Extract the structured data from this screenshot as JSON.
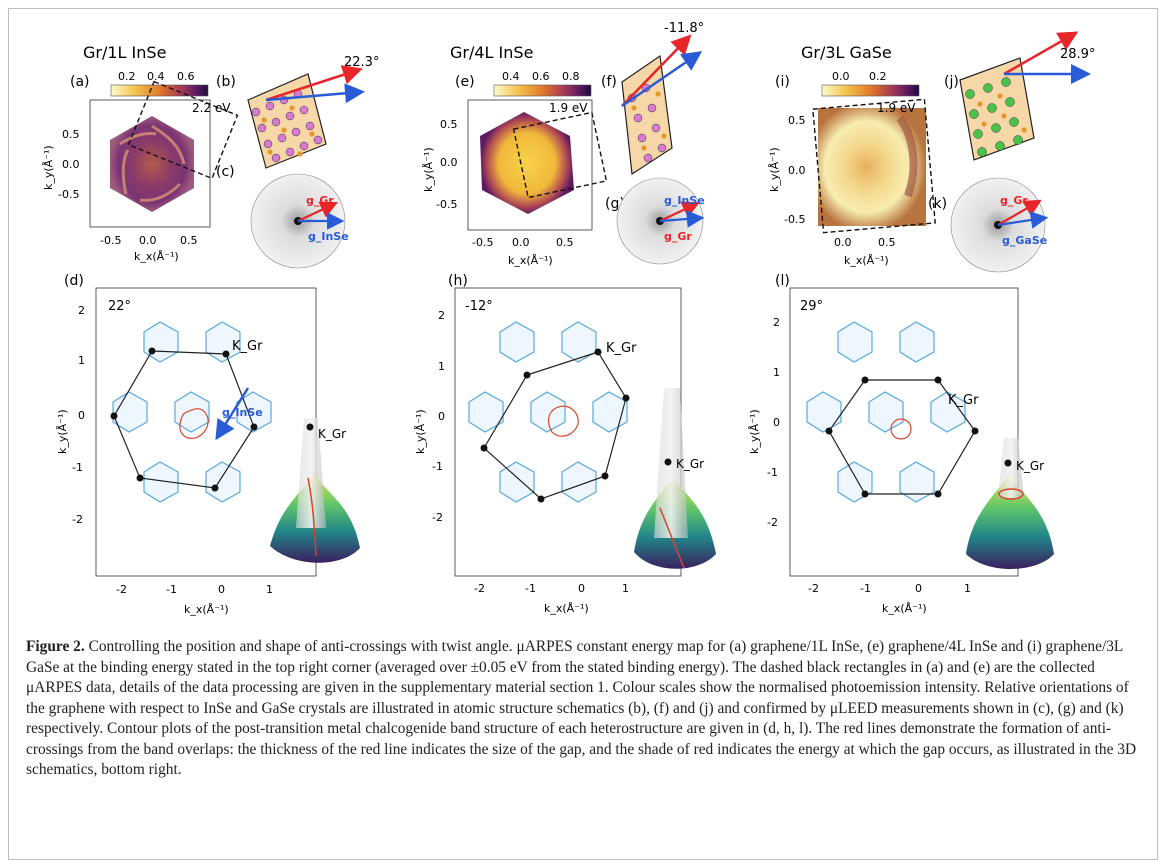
{
  "figure": {
    "columns": [
      {
        "title": "Gr/1L InSe",
        "map_label": "(a)",
        "schematic_label": "(b)",
        "leed_label": "(c)",
        "contour_label": "(d)",
        "angle_text": "22.3°",
        "energy_text": "2.2 eV",
        "colorbar_ticks": [
          "0.2",
          "0.4",
          "0.6"
        ],
        "map_ylabel": "k_y(Å⁻¹)",
        "map_xlabel": "k_x(Å⁻¹)",
        "map_yticks": [
          "0.5",
          "0.0",
          "-0.5"
        ],
        "map_xticks": [
          "-0.5",
          "0.0",
          "0.5"
        ],
        "leed_g1": "g_Gr",
        "leed_g2": "g_InSe",
        "contour_angle": "22°",
        "kgr_label": "K_Gr",
        "kgr3d_label": "K_Gr",
        "gvec_label": "g_InSe",
        "contour_yticks": [
          "2",
          "1",
          "0",
          "-1",
          "-2"
        ],
        "contour_xticks": [
          "-2",
          "-1",
          "0",
          "1"
        ],
        "contour_ylabel": "k_y(Å⁻¹)",
        "contour_xlabel": "k_x(Å⁻¹)"
      },
      {
        "title": "Gr/4L InSe",
        "map_label": "(e)",
        "schematic_label": "(f)",
        "leed_label": "(g)",
        "contour_label": "(h)",
        "angle_text": "-11.8°",
        "energy_text": "1.9 eV",
        "colorbar_ticks": [
          "0.4",
          "0.6",
          "0.8"
        ],
        "map_ylabel": "k_y(Å⁻¹)",
        "map_xlabel": "k_x(Å⁻¹)",
        "map_yticks": [
          "0.5",
          "0.0",
          "-0.5"
        ],
        "map_xticks": [
          "-0.5",
          "0.0",
          "0.5"
        ],
        "leed_g1": "g_InSe",
        "leed_g2": "g_Gr",
        "contour_angle": "-12°",
        "kgr_label": "K_Gr",
        "kgr3d_label": "K_Gr",
        "contour_yticks": [
          "2",
          "1",
          "0",
          "-1",
          "-2"
        ],
        "contour_xticks": [
          "-2",
          "-1",
          "0",
          "1"
        ],
        "contour_ylabel": "k_y(Å⁻¹)",
        "contour_xlabel": "k_x(Å⁻¹)"
      },
      {
        "title": "Gr/3L GaSe",
        "map_label": "(i)",
        "schematic_label": "(j)",
        "leed_label": "(k)",
        "contour_label": "(l)",
        "angle_text": "28.9°",
        "energy_text": "1.9 eV",
        "colorbar_ticks": [
          "0.0",
          "0.2"
        ],
        "map_ylabel": "k_y(Å⁻¹)",
        "map_xlabel": "k_x(Å⁻¹)",
        "map_yticks": [
          "0.5",
          "0.0",
          "-0.5"
        ],
        "map_xticks": [
          "0.0",
          "0.5"
        ],
        "leed_g1": "g_Gr",
        "leed_g2": "g_GaSe",
        "contour_angle": "29°",
        "kgr_label": "K_Gr",
        "kgr3d_label": "K_Gr",
        "contour_yticks": [
          "2",
          "1",
          "0",
          "-1",
          "-2"
        ],
        "contour_xticks": [
          "-2",
          "-1",
          "0",
          "1"
        ],
        "contour_ylabel": "k_y(Å⁻¹)",
        "contour_xlabel": "k_x(Å⁻¹)"
      }
    ]
  },
  "colors": {
    "red_vector": "#e8262a",
    "blue_vector": "#2a5bd7",
    "bz_hex": "#5aa9dd",
    "anticrossing": "#d9452b",
    "colormap": [
      "#fdfbcf",
      "#f4c24d",
      "#e07a2a",
      "#a83a55",
      "#5c1a63",
      "#1c0a3a"
    ]
  },
  "caption": {
    "label": "Figure 2.",
    "text": "Controlling the position and shape of anti-crossings with twist angle. μARPES constant energy map for (a) graphene/1L InSe, (e) graphene/4L InSe and (i) graphene/3L GaSe at the binding energy stated in the top right corner (averaged over ±0.05 eV from the stated binding energy). The dashed black rectangles in (a) and (e) are the collected μARPES data, details of the data processing are given in the supplementary material section 1. Colour scales show the normalised photoemission intensity. Relative orientations of the graphene with respect to InSe and GaSe crystals are illustrated in atomic structure schematics (b), (f) and (j) and confirmed by μLEED measurements shown in (c), (g) and (k) respectively. Contour plots of the post-transition metal chalcogenide band structure of each heterostructure are given in (d, h, l). The red lines demonstrate the formation of anti-crossings from the band overlaps: the thickness of the red line indicates the size of the gap, and the shade of red indicates the energy at which the gap occurs, as illustrated in the 3D schematics, bottom right."
  }
}
